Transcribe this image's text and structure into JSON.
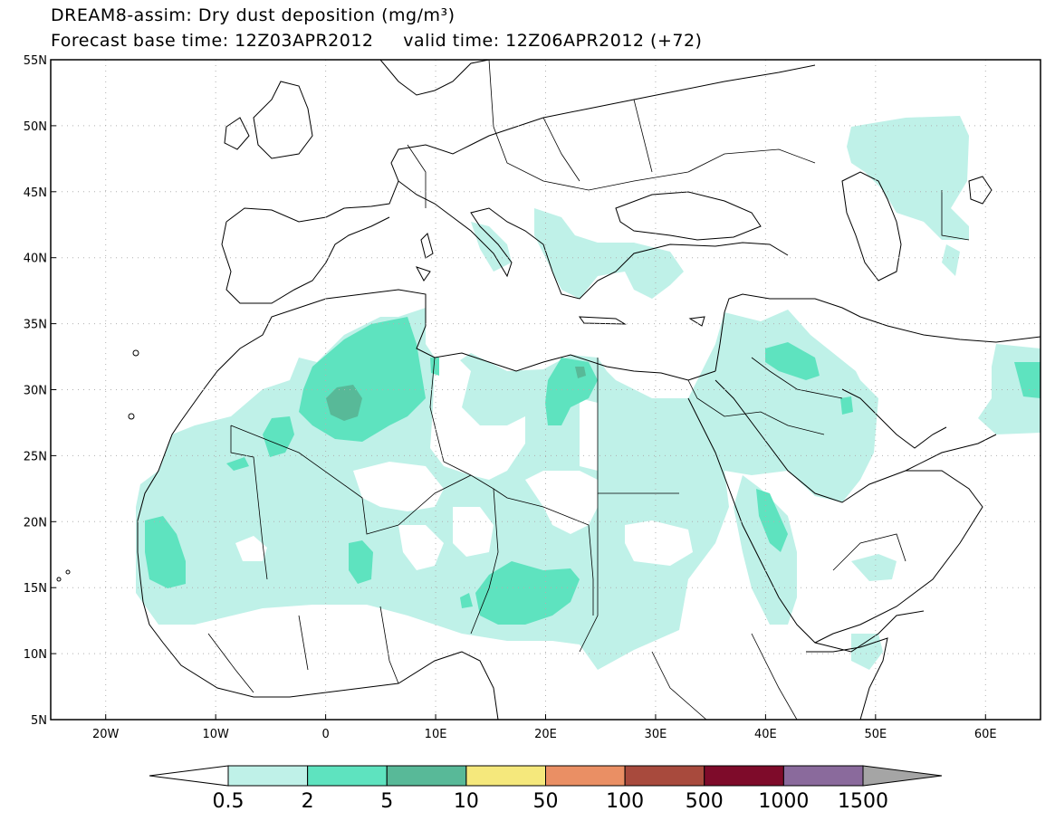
{
  "title": {
    "line1": "DREAM8-assim: Dry dust deposition (mg/m³)",
    "forecast_base": "Forecast base time: 12Z03APR2012",
    "valid": "valid time: 12Z06APR2012 (+72)"
  },
  "map": {
    "lon_range": [
      -25,
      65
    ],
    "lat_range": [
      5,
      55
    ],
    "lat_ticks": [
      {
        "value": 55,
        "label": "55N"
      },
      {
        "value": 50,
        "label": "50N"
      },
      {
        "value": 45,
        "label": "45N"
      },
      {
        "value": 40,
        "label": "40N"
      },
      {
        "value": 35,
        "label": "35N"
      },
      {
        "value": 30,
        "label": "30N"
      },
      {
        "value": 25,
        "label": "25N"
      },
      {
        "value": 20,
        "label": "20N"
      },
      {
        "value": 15,
        "label": "15N"
      },
      {
        "value": 10,
        "label": "10N"
      },
      {
        "value": 5,
        "label": "5N"
      }
    ],
    "lon_ticks": [
      {
        "value": -20,
        "label": "20W"
      },
      {
        "value": -10,
        "label": "10W"
      },
      {
        "value": 0,
        "label": "0"
      },
      {
        "value": 10,
        "label": "10E"
      },
      {
        "value": 20,
        "label": "20E"
      },
      {
        "value": 30,
        "label": "30E"
      },
      {
        "value": 40,
        "label": "40E"
      },
      {
        "value": 50,
        "label": "50E"
      },
      {
        "value": 60,
        "label": "60E"
      }
    ]
  },
  "colorbar": {
    "levels": [
      "0.5",
      "2",
      "5",
      "10",
      "50",
      "100",
      "500",
      "1000",
      "1500"
    ],
    "colors": [
      "#ffffff",
      "#bff1e8",
      "#5ee3bf",
      "#58b998",
      "#f5e87c",
      "#ea8f64",
      "#a84a3d",
      "#7e0b2a",
      "#8a6a9c",
      "#a5a5a5"
    ]
  }
}
